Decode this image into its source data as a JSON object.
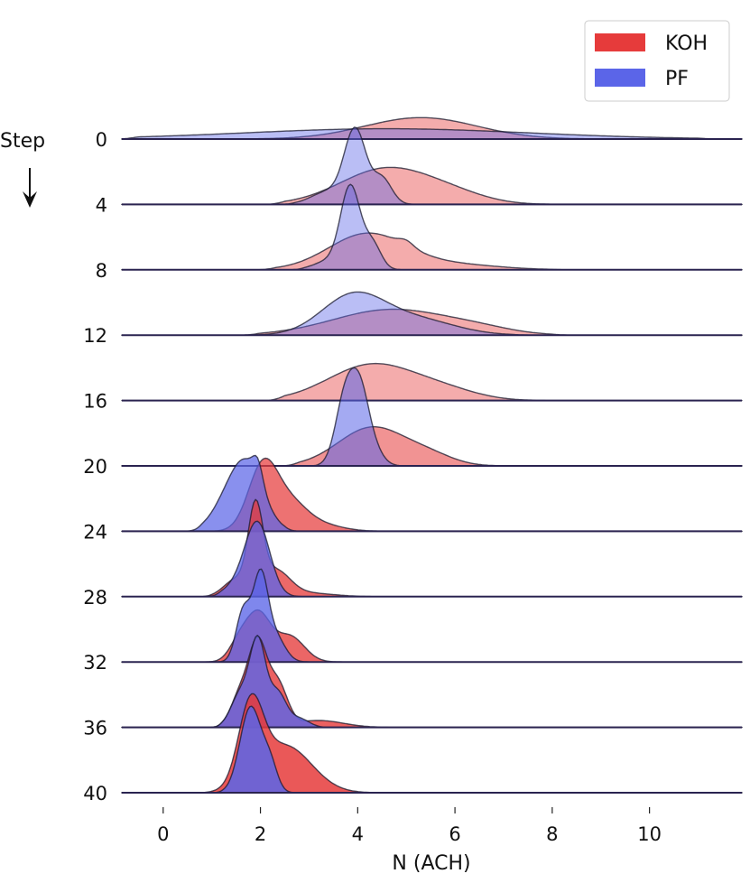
{
  "chart_data": {
    "type": "area",
    "subtype": "ridgeline",
    "xlabel": "N (ACH)",
    "ylabel": "Step",
    "xlim": [
      -0.85,
      11.9
    ],
    "x_ticks": [
      0,
      2,
      4,
      6,
      8,
      10
    ],
    "grid": false,
    "legend": {
      "placement": "top-right",
      "entries": [
        {
          "name": "KOH",
          "color": "#e63b3b"
        },
        {
          "name": "PF",
          "color": "#5b65e8"
        }
      ]
    },
    "ridges": [
      {
        "step_label": "0",
        "alpha": 0.5,
        "KOH": {
          "peaks": [
            {
              "mu": 5.3,
              "sigma": 1.15,
              "amp": 0.25
            }
          ],
          "min": 1.0,
          "max": 10.0
        },
        "PF": {
          "peaks": [
            {
              "mu": 4.6,
              "sigma": 2.9,
              "amp": 0.12
            }
          ],
          "min": -0.5,
          "max": 11.0
        }
      },
      {
        "step_label": "4",
        "alpha": 0.5,
        "KOH": {
          "peaks": [
            {
              "mu": 4.6,
              "sigma": 0.95,
              "amp": 0.42
            },
            {
              "mu": 6.0,
              "sigma": 0.7,
              "amp": 0.08
            }
          ],
          "min": 2.5,
          "max": 8.0
        },
        "PF": {
          "peaks": [
            {
              "mu": 3.95,
              "sigma": 0.22,
              "amp": 0.85
            },
            {
              "mu": 4.5,
              "sigma": 0.2,
              "amp": 0.3
            },
            {
              "mu": 3.4,
              "sigma": 0.35,
              "amp": 0.15
            }
          ],
          "min": 2.7,
          "max": 5.5
        }
      },
      {
        "step_label": "8",
        "alpha": 0.5,
        "KOH": {
          "peaks": [
            {
              "mu": 4.2,
              "sigma": 0.8,
              "amp": 0.42
            },
            {
              "mu": 5.0,
              "sigma": 0.15,
              "amp": 0.06
            },
            {
              "mu": 6.0,
              "sigma": 0.9,
              "amp": 0.06
            }
          ],
          "min": 2.3,
          "max": 8.0
        },
        "PF": {
          "peaks": [
            {
              "mu": 3.85,
              "sigma": 0.2,
              "amp": 0.95
            },
            {
              "mu": 4.3,
              "sigma": 0.18,
              "amp": 0.3
            },
            {
              "mu": 3.4,
              "sigma": 0.3,
              "amp": 0.1
            }
          ],
          "min": 2.9,
          "max": 5.0
        }
      },
      {
        "step_label": "12",
        "alpha": 0.5,
        "KOH": {
          "peaks": [
            {
              "mu": 4.7,
              "sigma": 1.2,
              "amp": 0.3
            },
            {
              "mu": 6.5,
              "sigma": 0.7,
              "amp": 0.05
            }
          ],
          "min": 2.0,
          "max": 8.0
        },
        "PF": {
          "peaks": [
            {
              "mu": 3.9,
              "sigma": 0.65,
              "amp": 0.45
            },
            {
              "mu": 5.2,
              "sigma": 0.8,
              "amp": 0.18
            }
          ],
          "min": 2.0,
          "max": 7.2
        }
      },
      {
        "step_label": "16",
        "alpha": 0.5,
        "KOH": {
          "peaks": [
            {
              "mu": 4.3,
              "sigma": 0.9,
              "amp": 0.42
            },
            {
              "mu": 5.8,
              "sigma": 0.7,
              "amp": 0.1
            }
          ],
          "min": 2.5,
          "max": 7.6
        }
      },
      {
        "step_label": "20",
        "alpha": 0.65,
        "KOH": {
          "peaks": [
            {
              "mu": 4.3,
              "sigma": 0.7,
              "amp": 0.45
            },
            {
              "mu": 5.5,
              "sigma": 0.5,
              "amp": 0.1
            }
          ],
          "min": 2.8,
          "max": 6.8
        },
        "PF": {
          "peaks": [
            {
              "mu": 3.75,
              "sigma": 0.2,
              "amp": 0.82
            },
            {
              "mu": 4.05,
              "sigma": 0.18,
              "amp": 0.7
            },
            {
              "mu": 4.3,
              "sigma": 0.2,
              "amp": 0.2
            }
          ],
          "min": 3.2,
          "max": 4.8
        }
      },
      {
        "step_label": "24",
        "alpha": 0.85,
        "KOH": {
          "peaks": [
            {
              "mu": 2.05,
              "sigma": 0.3,
              "amp": 0.75
            },
            {
              "mu": 2.6,
              "sigma": 0.35,
              "amp": 0.3
            },
            {
              "mu": 3.2,
              "sigma": 0.45,
              "amp": 0.08
            }
          ],
          "min": 1.0,
          "max": 4.6
        },
        "PF": {
          "peaks": [
            {
              "mu": 1.7,
              "sigma": 0.35,
              "amp": 0.8
            },
            {
              "mu": 1.95,
              "sigma": 0.1,
              "amp": 0.22
            },
            {
              "mu": 1.2,
              "sigma": 0.3,
              "amp": 0.15
            }
          ],
          "min": 0.8,
          "max": 2.5
        }
      },
      {
        "step_label": "28",
        "alpha": 0.9,
        "KOH": {
          "peaks": [
            {
              "mu": 1.9,
              "sigma": 0.15,
              "amp": 0.95
            },
            {
              "mu": 2.3,
              "sigma": 0.3,
              "amp": 0.3
            },
            {
              "mu": 1.5,
              "sigma": 0.25,
              "amp": 0.2
            },
            {
              "mu": 3.0,
              "sigma": 0.5,
              "amp": 0.04
            }
          ],
          "min": 1.0,
          "max": 6.0
        },
        "PF": {
          "peaks": [
            {
              "mu": 1.95,
              "sigma": 0.25,
              "amp": 0.8
            },
            {
              "mu": 1.6,
              "sigma": 0.3,
              "amp": 0.15
            }
          ],
          "min": 1.2,
          "max": 2.8
        }
      },
      {
        "step_label": "32",
        "alpha": 0.92,
        "KOH": {
          "peaks": [
            {
              "mu": 1.95,
              "sigma": 0.25,
              "amp": 0.55
            },
            {
              "mu": 2.6,
              "sigma": 0.3,
              "amp": 0.3
            },
            {
              "mu": 1.55,
              "sigma": 0.2,
              "amp": 0.2
            }
          ],
          "min": 1.0,
          "max": 4.5
        },
        "PF": {
          "peaks": [
            {
              "mu": 1.65,
              "sigma": 0.15,
              "amp": 0.6
            },
            {
              "mu": 2.0,
              "sigma": 0.15,
              "amp": 0.95
            },
            {
              "mu": 2.3,
              "sigma": 0.2,
              "amp": 0.3
            }
          ],
          "min": 1.2,
          "max": 3.0
        }
      },
      {
        "step_label": "36",
        "alpha": 0.95,
        "KOH": {
          "peaks": [
            {
              "mu": 1.95,
              "sigma": 0.18,
              "amp": 0.9
            },
            {
              "mu": 2.35,
              "sigma": 0.2,
              "amp": 0.5
            },
            {
              "mu": 1.6,
              "sigma": 0.2,
              "amp": 0.4
            },
            {
              "mu": 3.2,
              "sigma": 0.5,
              "amp": 0.08
            }
          ],
          "min": 1.2,
          "max": 4.4
        },
        "PF": {
          "peaks": [
            {
              "mu": 1.95,
              "sigma": 0.16,
              "amp": 0.95
            },
            {
              "mu": 1.6,
              "sigma": 0.2,
              "amp": 0.4
            },
            {
              "mu": 2.35,
              "sigma": 0.18,
              "amp": 0.4
            },
            {
              "mu": 2.8,
              "sigma": 0.2,
              "amp": 0.1
            }
          ],
          "min": 1.2,
          "max": 3.2
        }
      },
      {
        "step_label": "40",
        "alpha": 1.0,
        "KOH": {
          "peaks": [
            {
              "mu": 1.8,
              "sigma": 0.25,
              "amp": 0.9
            },
            {
              "mu": 2.5,
              "sigma": 0.55,
              "amp": 0.55
            }
          ],
          "min": 1.0,
          "max": 4.2
        },
        "PF": {
          "peaks": [
            {
              "mu": 1.8,
              "sigma": 0.22,
              "amp": 1.0
            },
            {
              "mu": 2.2,
              "sigma": 0.15,
              "amp": 0.3
            }
          ],
          "min": 1.2,
          "max": 2.8
        }
      }
    ]
  }
}
